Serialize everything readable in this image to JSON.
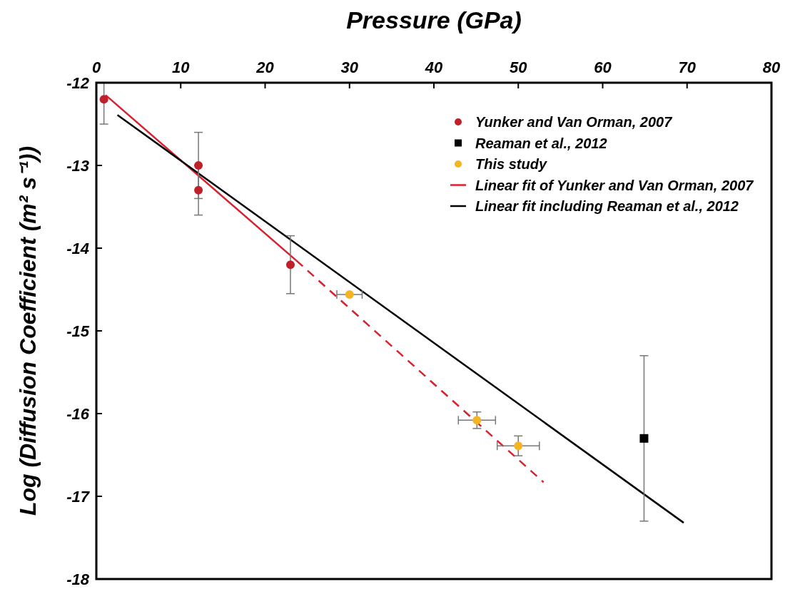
{
  "chart_data": {
    "type": "scatter",
    "xlabel": "Pressure (GPa)",
    "ylabel": "Log (Diffusion Coefficient (m² s⁻¹))",
    "xlim": [
      0,
      80
    ],
    "xticks": [
      0,
      10,
      20,
      30,
      40,
      50,
      60,
      70,
      80
    ],
    "ylim": [
      -18,
      -12
    ],
    "yticks": [
      -18,
      -17,
      -16,
      -15,
      -14,
      -13,
      -12
    ],
    "grid": false,
    "legend": "top right",
    "series": [
      {
        "name": "Yunker and Van Orman, 2007",
        "marker": "circle",
        "color": "#c0202a",
        "x": [
          0.9,
          12.1,
          12.1,
          23.0
        ],
        "values": [
          -12.2,
          -13.0,
          -13.3,
          -14.2
        ],
        "errors": [
          [
            -12.5,
            -12.0
          ],
          0.4,
          0.3,
          0.35
        ]
      },
      {
        "name": "Reaman et al., 2012",
        "marker": "square",
        "color": "#000000",
        "x": [
          64.9
        ],
        "values": [
          -16.3
        ],
        "errors": [
          1.0
        ]
      },
      {
        "name": "This study",
        "marker": "circle",
        "color": "#f5b422",
        "x": [
          30.0,
          45.1,
          50.0
        ],
        "values": [
          -14.56,
          -16.08,
          -16.39
        ],
        "errors": [
          null,
          0.1,
          0.12
        ],
        "xerrors": [
          1.5,
          2.2,
          2.5
        ]
      },
      {
        "name": "Linear fit of Yunker and Van Orman, 2007",
        "type": "line",
        "line_style": "solid",
        "color": "#d8202e",
        "x": [
          1.1,
          23.7
        ],
        "values": [
          -12.15,
          -14.15
        ]
      },
      {
        "name": "Linear fit including Reaman et al., 2012",
        "type": "line",
        "line_style": "solid",
        "color": "#000000",
        "x": [
          2.5,
          69.6
        ],
        "values": [
          -12.39,
          -17.32
        ]
      },
      {
        "type": "line",
        "line_style": "dashed",
        "color": "#d8202e",
        "x": [
          23.7,
          53.0
        ],
        "values": [
          -14.15,
          -16.83
        ]
      }
    ]
  }
}
